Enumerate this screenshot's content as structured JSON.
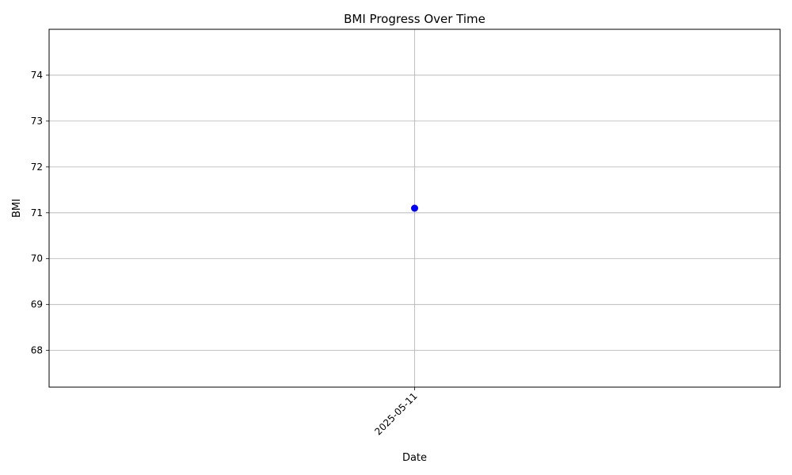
{
  "chart_data": {
    "type": "line",
    "title": "BMI Progress Over Time",
    "xlabel": "Date",
    "ylabel": "BMI",
    "x_ticks": [
      "2025-05-11"
    ],
    "y_ticks": [
      68,
      69,
      70,
      71,
      72,
      73,
      74
    ],
    "ylim": [
      67.2,
      75
    ],
    "grid": true,
    "x": [
      "2025-05-11"
    ],
    "series": [
      {
        "values": [
          71.1
        ],
        "color": "#0000ff",
        "marker": "circle"
      }
    ]
  }
}
